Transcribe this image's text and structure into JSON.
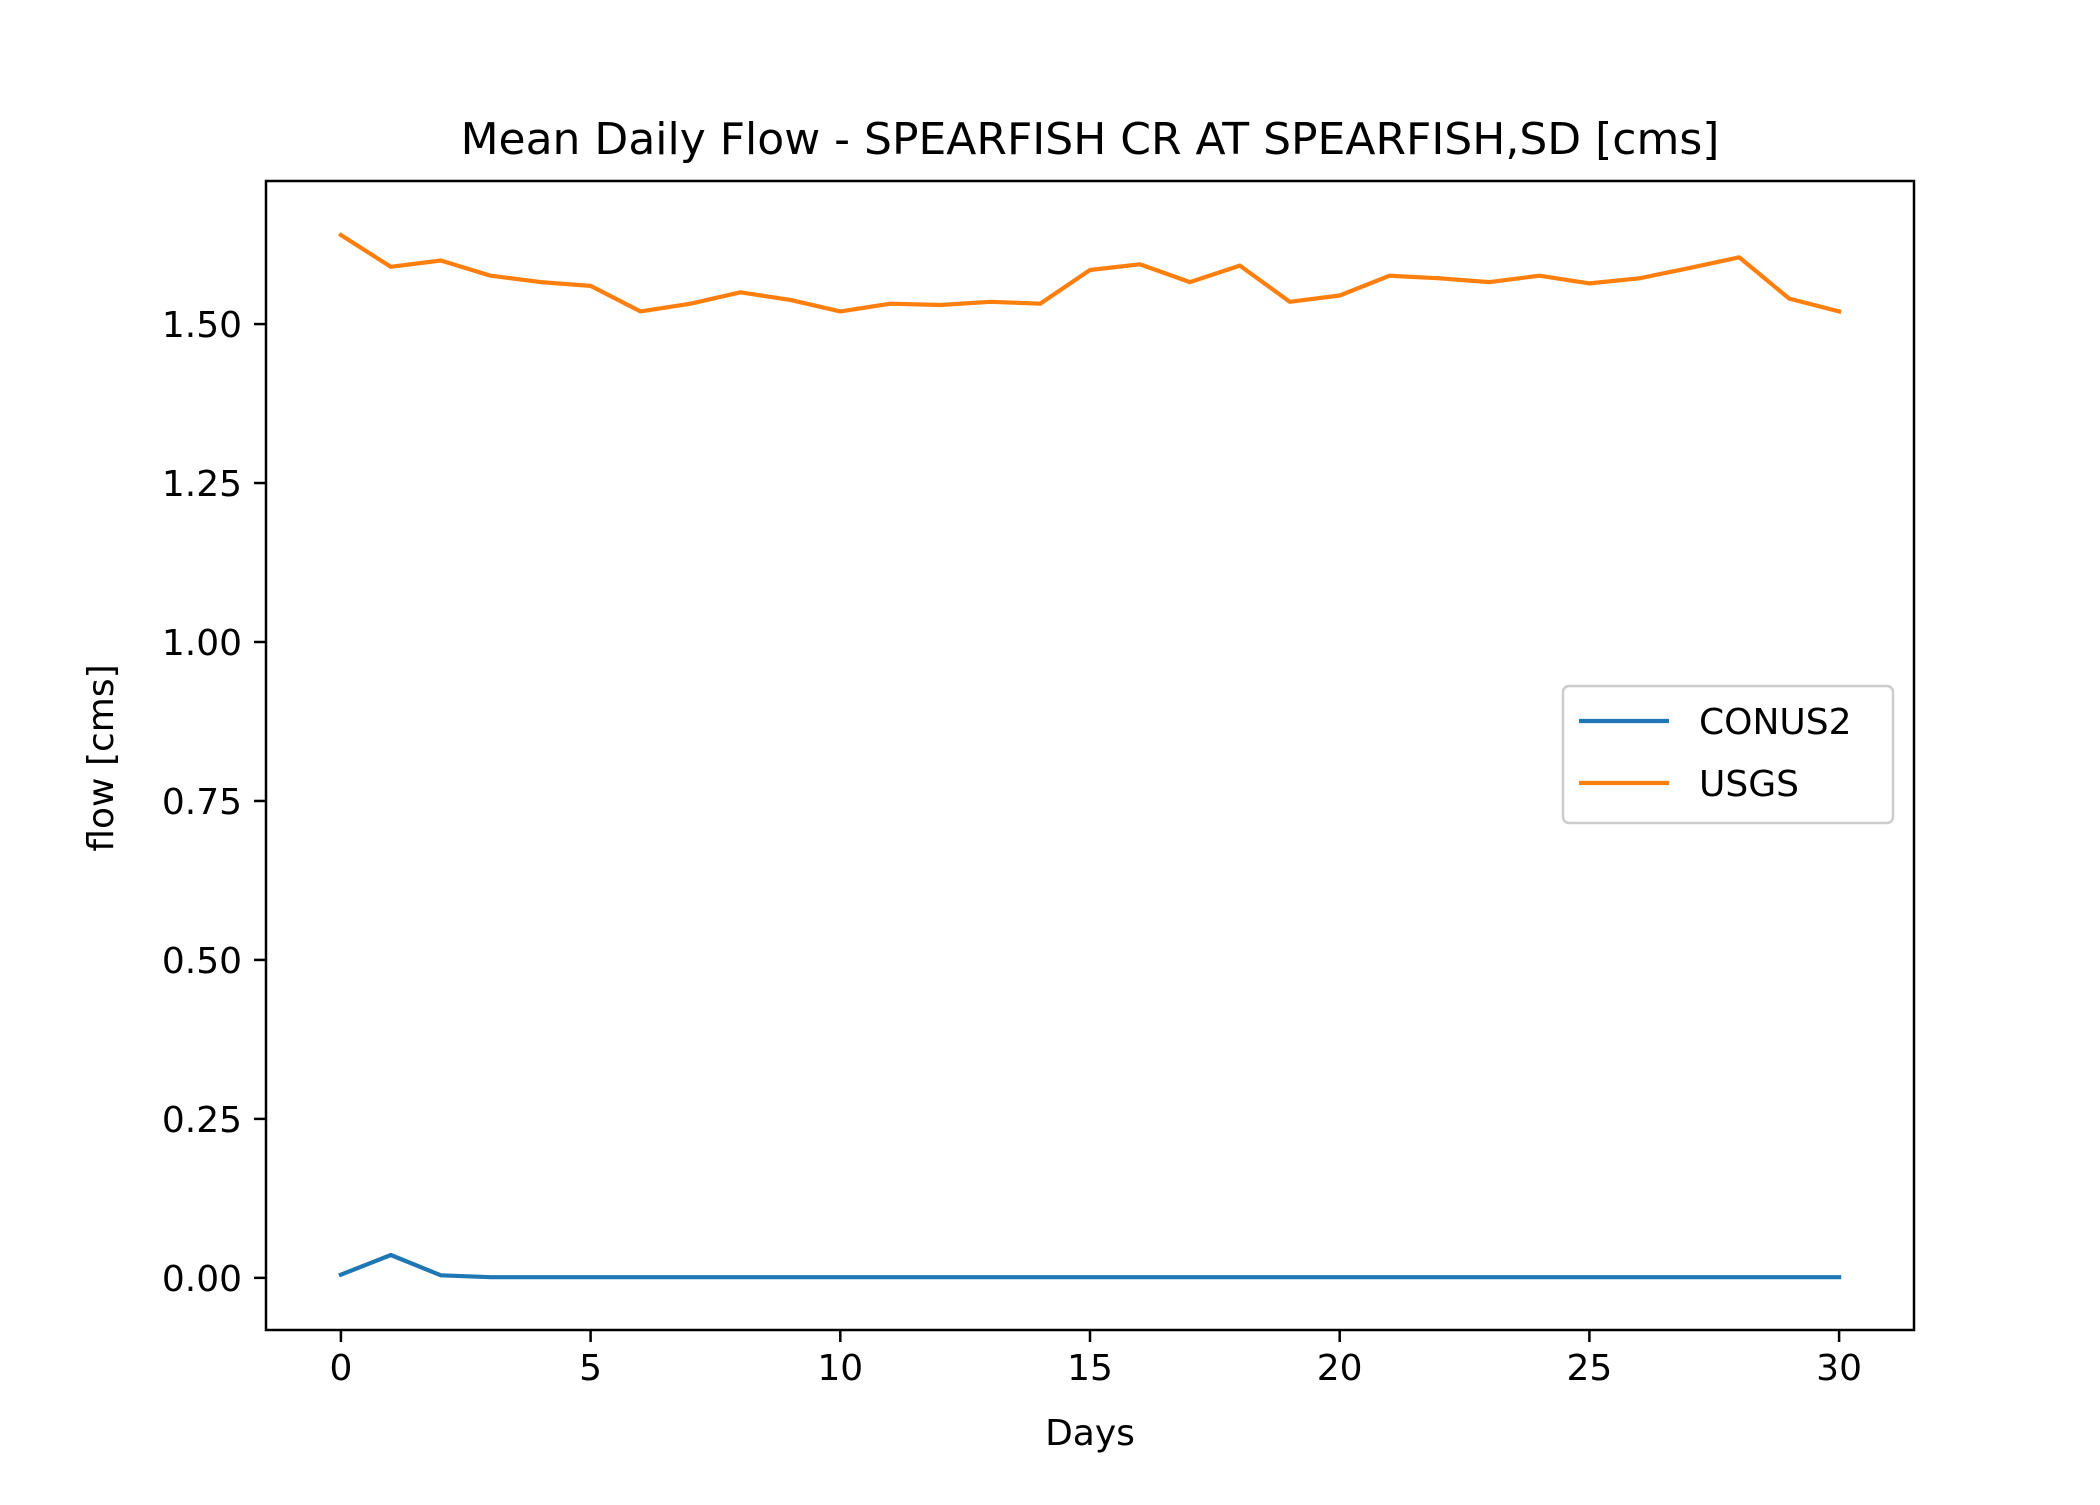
{
  "chart_data": {
    "type": "line",
    "title": "Mean Daily Flow - SPEARFISH CR AT SPEARFISH,SD [cms]",
    "xlabel": "Days",
    "ylabel": "flow [cms]",
    "xlim": [
      -1.5,
      31.5
    ],
    "ylim": [
      -0.082,
      1.725
    ],
    "xticks": [
      0,
      5,
      10,
      15,
      20,
      25,
      30
    ],
    "xtick_labels": [
      "0",
      "5",
      "10",
      "15",
      "20",
      "25",
      "30"
    ],
    "yticks": [
      0,
      0.25,
      0.5,
      0.75,
      1.0,
      1.25,
      1.5
    ],
    "ytick_labels": [
      "0.00",
      "0.25",
      "0.50",
      "0.75",
      "1.00",
      "1.25",
      "1.50"
    ],
    "grid": false,
    "legend_position": "center-right",
    "x": [
      0,
      1,
      2,
      3,
      4,
      5,
      6,
      7,
      8,
      9,
      10,
      11,
      12,
      13,
      14,
      15,
      16,
      17,
      18,
      19,
      20,
      21,
      22,
      23,
      24,
      25,
      26,
      27,
      28,
      29,
      30
    ],
    "series": [
      {
        "name": "CONUS2",
        "color": "#1f77b4",
        "values": [
          0.005,
          0.036,
          0.004,
          0.001,
          0.001,
          0.001,
          0.001,
          0.001,
          0.001,
          0.001,
          0.001,
          0.001,
          0.001,
          0.001,
          0.001,
          0.001,
          0.001,
          0.001,
          0.001,
          0.001,
          0.001,
          0.001,
          0.001,
          0.001,
          0.001,
          0.001,
          0.001,
          0.001,
          0.001,
          0.001,
          0.001
        ]
      },
      {
        "name": "USGS",
        "color": "#ff7f0e",
        "values": [
          1.64,
          1.59,
          1.6,
          1.576,
          1.566,
          1.56,
          1.52,
          1.532,
          1.55,
          1.538,
          1.52,
          1.532,
          1.53,
          1.535,
          1.532,
          1.585,
          1.594,
          1.566,
          1.592,
          1.535,
          1.545,
          1.576,
          1.572,
          1.566,
          1.576,
          1.564,
          1.572,
          1.588,
          1.605,
          1.54,
          1.52
        ]
      }
    ]
  }
}
